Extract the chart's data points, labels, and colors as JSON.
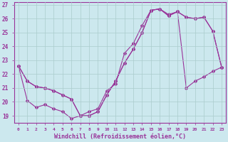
{
  "xlabel": "Windchill (Refroidissement éolien,°C)",
  "bg_color": "#cce8ee",
  "line_color": "#993399",
  "grid_color": "#aacccc",
  "x_ticks": [
    0,
    1,
    2,
    3,
    4,
    5,
    6,
    7,
    8,
    9,
    10,
    11,
    12,
    13,
    14,
    15,
    16,
    17,
    18,
    19,
    20,
    21,
    22,
    23
  ],
  "ylim": [
    18.5,
    27.2
  ],
  "xlim": [
    -0.5,
    23.5
  ],
  "line1": [
    22.6,
    21.5,
    21.1,
    21.0,
    20.8,
    20.5,
    20.2,
    19.0,
    19.0,
    19.3,
    20.5,
    21.5,
    22.8,
    23.8,
    25.0,
    26.6,
    26.7,
    26.2,
    26.5,
    26.1,
    26.0,
    26.1,
    25.1,
    22.5
  ],
  "line2": [
    22.6,
    20.1,
    19.6,
    19.8,
    19.5,
    19.3,
    18.8,
    19.0,
    19.3,
    19.5,
    20.8,
    21.3,
    23.5,
    24.2,
    25.5,
    26.6,
    26.7,
    26.3,
    26.5,
    26.1,
    26.0,
    26.1,
    25.1,
    22.5
  ],
  "line3": [
    22.6,
    21.5,
    21.1,
    21.0,
    20.8,
    20.5,
    20.2,
    19.0,
    19.0,
    19.3,
    20.5,
    21.5,
    22.8,
    23.8,
    25.0,
    26.6,
    26.7,
    26.2,
    26.5,
    21.0,
    21.5,
    21.8,
    22.2,
    22.5
  ],
  "yticks": [
    19,
    20,
    21,
    22,
    23,
    24,
    25,
    26,
    27
  ]
}
